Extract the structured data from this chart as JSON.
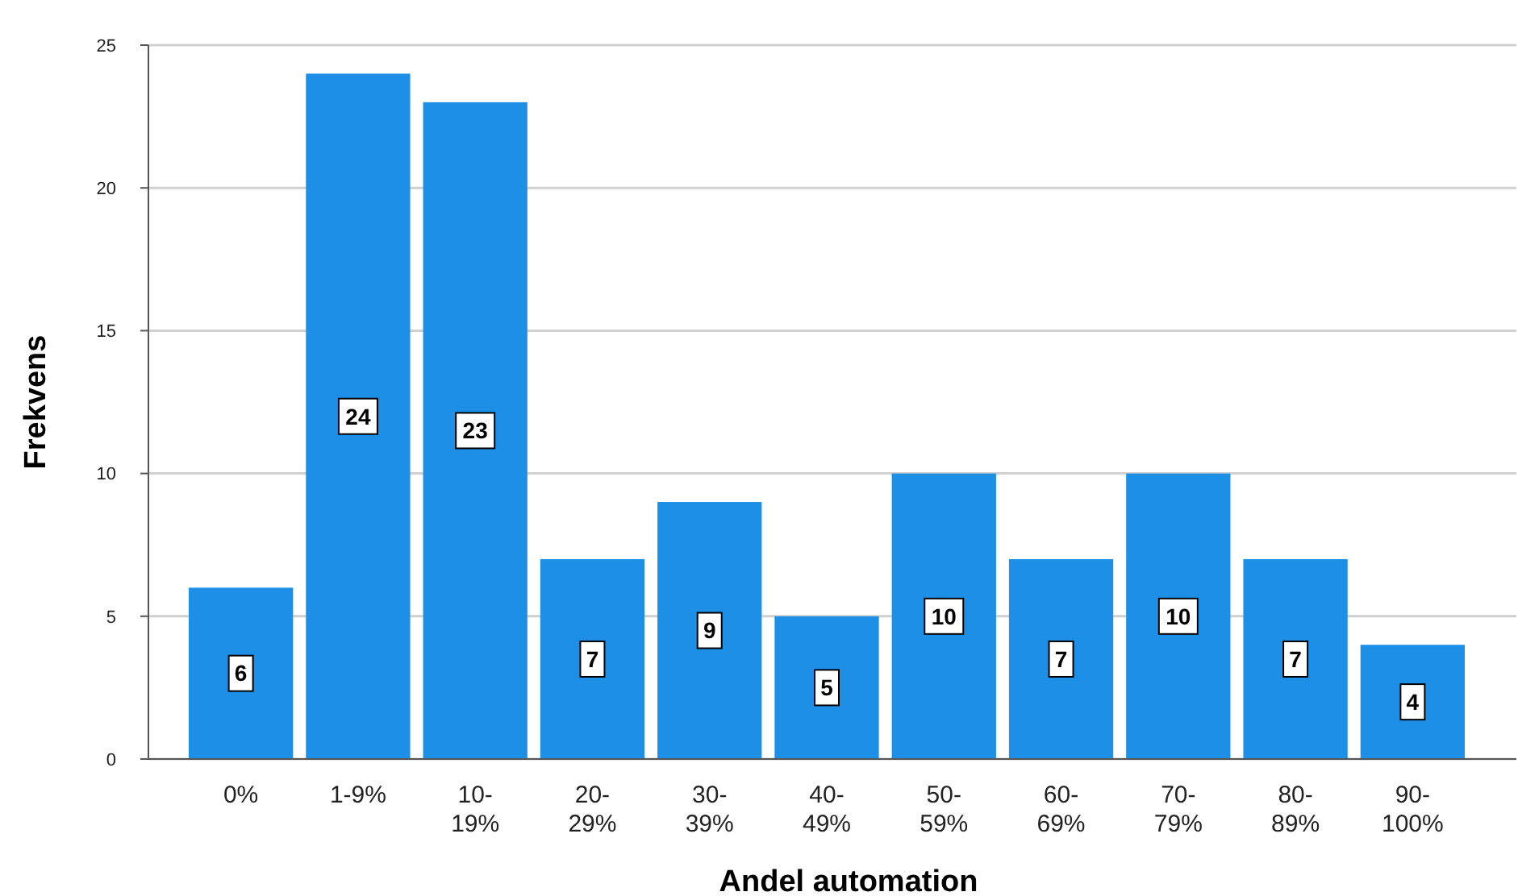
{
  "chart_data": {
    "type": "bar",
    "xlabel": "Andel automation",
    "ylabel": "Frekvens",
    "categories": [
      "0%",
      "1-9%",
      "10-19%",
      "20-29%",
      "30-39%",
      "40-49%",
      "50-59%",
      "60-69%",
      "70-79%",
      "80-89%",
      "90-100%"
    ],
    "values": [
      6,
      24,
      23,
      7,
      9,
      5,
      10,
      7,
      10,
      7,
      4
    ],
    "color": "#1e8fe6",
    "ylim": [
      0,
      25
    ],
    "yticks": [
      0,
      5,
      10,
      15,
      20,
      25
    ],
    "grid": "y",
    "data_labels": true
  }
}
